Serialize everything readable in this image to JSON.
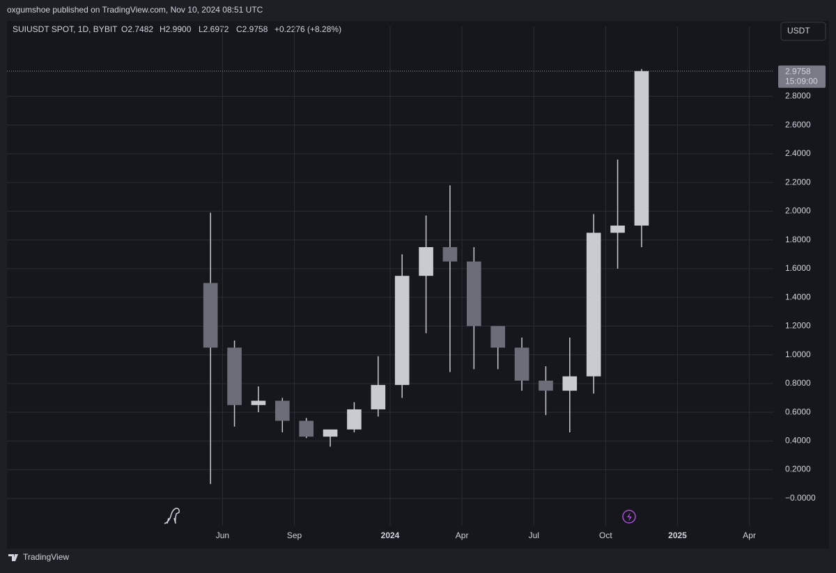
{
  "header": "oxgumshoe published on TradingView.com, Nov 10, 2024 08:51 UTC",
  "footer": "TradingView",
  "chart_data": {
    "type": "candlestick",
    "symbol": "SUIUSDT SPOT, 1D, BYBIT",
    "legend": {
      "open": "O2.7482",
      "high": "H2.9900",
      "low": "L2.6972",
      "close": "C2.9758",
      "change": "+0.2276 (+8.28%)"
    },
    "currency": "USDT",
    "last_price": 2.9758,
    "countdown": "15:09:00",
    "color": "#c9cbd1",
    "x": [
      "2023-05",
      "2023-06",
      "2023-07",
      "2023-08",
      "2023-09",
      "2023-10",
      "2023-11",
      "2023-12",
      "2024-01",
      "2024-02",
      "2024-03",
      "2024-04",
      "2024-05",
      "2024-06",
      "2024-07",
      "2024-08",
      "2024-09",
      "2024-10",
      "2024-11"
    ],
    "open": [
      1.5,
      1.05,
      0.65,
      0.68,
      0.54,
      0.43,
      0.48,
      0.62,
      0.79,
      1.55,
      1.75,
      1.65,
      1.2,
      1.05,
      0.82,
      0.75,
      0.85,
      1.85,
      1.9
    ],
    "high": [
      1.99,
      1.1,
      0.78,
      0.7,
      0.56,
      0.47,
      0.67,
      0.99,
      1.7,
      1.97,
      2.18,
      1.75,
      1.2,
      1.12,
      0.92,
      1.12,
      1.98,
      2.36,
      2.99
    ],
    "low": [
      0.1,
      0.5,
      0.6,
      0.46,
      0.42,
      0.36,
      0.46,
      0.57,
      0.7,
      1.15,
      0.88,
      0.9,
      0.9,
      0.75,
      0.58,
      0.46,
      0.73,
      1.6,
      1.75
    ],
    "close": [
      1.05,
      0.65,
      0.68,
      0.54,
      0.43,
      0.48,
      0.62,
      0.79,
      1.55,
      1.75,
      1.65,
      1.2,
      1.05,
      0.82,
      0.75,
      0.85,
      1.85,
      1.9,
      2.9758
    ],
    "xlim": [
      "2022-09",
      "2025-05"
    ],
    "xticks": [
      {
        "value": "2023-06",
        "label": "Jun"
      },
      {
        "value": "2023-09",
        "label": "Sep"
      },
      {
        "value": "2024-01",
        "label": "2024"
      },
      {
        "value": "2024-04",
        "label": "Apr"
      },
      {
        "value": "2024-07",
        "label": "Jul"
      },
      {
        "value": "2024-10",
        "label": "Oct"
      },
      {
        "value": "2025-01",
        "label": "2025"
      },
      {
        "value": "2025-04",
        "label": "Apr"
      }
    ],
    "ylim": [
      -0.19,
      3.19
    ],
    "yticks": [
      {
        "value": 0,
        "label": "−0.0000"
      },
      {
        "value": 0.2,
        "label": "0.2000"
      },
      {
        "value": 0.4,
        "label": "0.4000"
      },
      {
        "value": 0.6,
        "label": "0.6000"
      },
      {
        "value": 0.8,
        "label": "0.8000"
      },
      {
        "value": 1,
        "label": "1.0000"
      },
      {
        "value": 1.2,
        "label": "1.2000"
      },
      {
        "value": 1.4,
        "label": "1.4000"
      },
      {
        "value": 1.6,
        "label": "1.6000"
      },
      {
        "value": 1.8,
        "label": "1.8000"
      },
      {
        "value": 2,
        "label": "2.0000"
      },
      {
        "value": 2.2,
        "label": "2.2000"
      },
      {
        "value": 2.4,
        "label": "2.4000"
      },
      {
        "value": 2.6,
        "label": "2.6000"
      },
      {
        "value": 2.8,
        "label": "2.8000"
      }
    ],
    "grid": true
  }
}
